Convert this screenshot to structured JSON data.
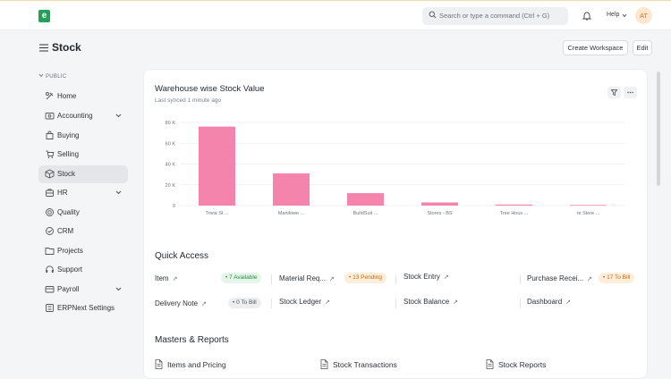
{
  "topbar": {
    "logo_letter": "e",
    "search_placeholder": "Search or type a command (Ctrl + G)",
    "help_label": "Help",
    "avatar_initials": "AT"
  },
  "page": {
    "title": "Stock",
    "create_workspace_label": "Create Workspace",
    "edit_label": "Edit"
  },
  "sidebar": {
    "section_label": "PUBLIC",
    "items": [
      {
        "label": "Home",
        "icon": "tools-icon"
      },
      {
        "label": "Accounting",
        "icon": "accounting-icon"
      },
      {
        "label": "Buying",
        "icon": "buying-icon"
      },
      {
        "label": "Selling",
        "icon": "selling-icon"
      },
      {
        "label": "Stock",
        "icon": "stock-icon"
      },
      {
        "label": "HR",
        "icon": "hr-icon"
      },
      {
        "label": "Quality",
        "icon": "quality-icon"
      },
      {
        "label": "CRM",
        "icon": "crm-icon"
      },
      {
        "label": "Projects",
        "icon": "projects-icon"
      },
      {
        "label": "Support",
        "icon": "support-icon"
      },
      {
        "label": "Payroll",
        "icon": "payroll-icon"
      },
      {
        "label": "ERPNext Settings",
        "icon": "settings-icon"
      }
    ]
  },
  "card": {
    "title": "Warehouse wise Stock Value",
    "subtitle": "Last synced 1 minute ago"
  },
  "chart_data": {
    "type": "bar",
    "categories": [
      "Trivia St ...",
      "Manilowe ...",
      "BuildSuit ...",
      "Stores - BS",
      "Tree Hous ...",
      "re Store ..."
    ],
    "values": [
      76000,
      31000,
      12000,
      3000,
      1000,
      600
    ],
    "ylim": [
      0,
      80000
    ],
    "yticks": [
      0,
      20000,
      40000,
      60000,
      80000
    ],
    "ytick_labels": [
      "0",
      "20 K",
      "40 K",
      "60 K",
      "80 K"
    ],
    "bar_color": "#f484ab",
    "grid": true
  },
  "quick_access": {
    "title": "Quick Access",
    "items": [
      {
        "label": "Item",
        "badge": "7 Available"
      },
      {
        "label": "Material Req...",
        "badge": "13 Pending"
      },
      {
        "label": "Stock Entry",
        "badge": ""
      },
      {
        "label": "Purchase Recei...",
        "badge": "17 To Bill"
      },
      {
        "label": "Delivery Note",
        "badge": "0 To Bill"
      },
      {
        "label": "Stock Ledger",
        "badge": ""
      },
      {
        "label": "Stock Balance",
        "badge": ""
      },
      {
        "label": "Dashboard",
        "badge": ""
      }
    ]
  },
  "masters": {
    "title": "Masters & Reports",
    "items": [
      "Items and Pricing",
      "Stock Transactions",
      "Stock Reports"
    ]
  },
  "arrow_glyph": "↗"
}
